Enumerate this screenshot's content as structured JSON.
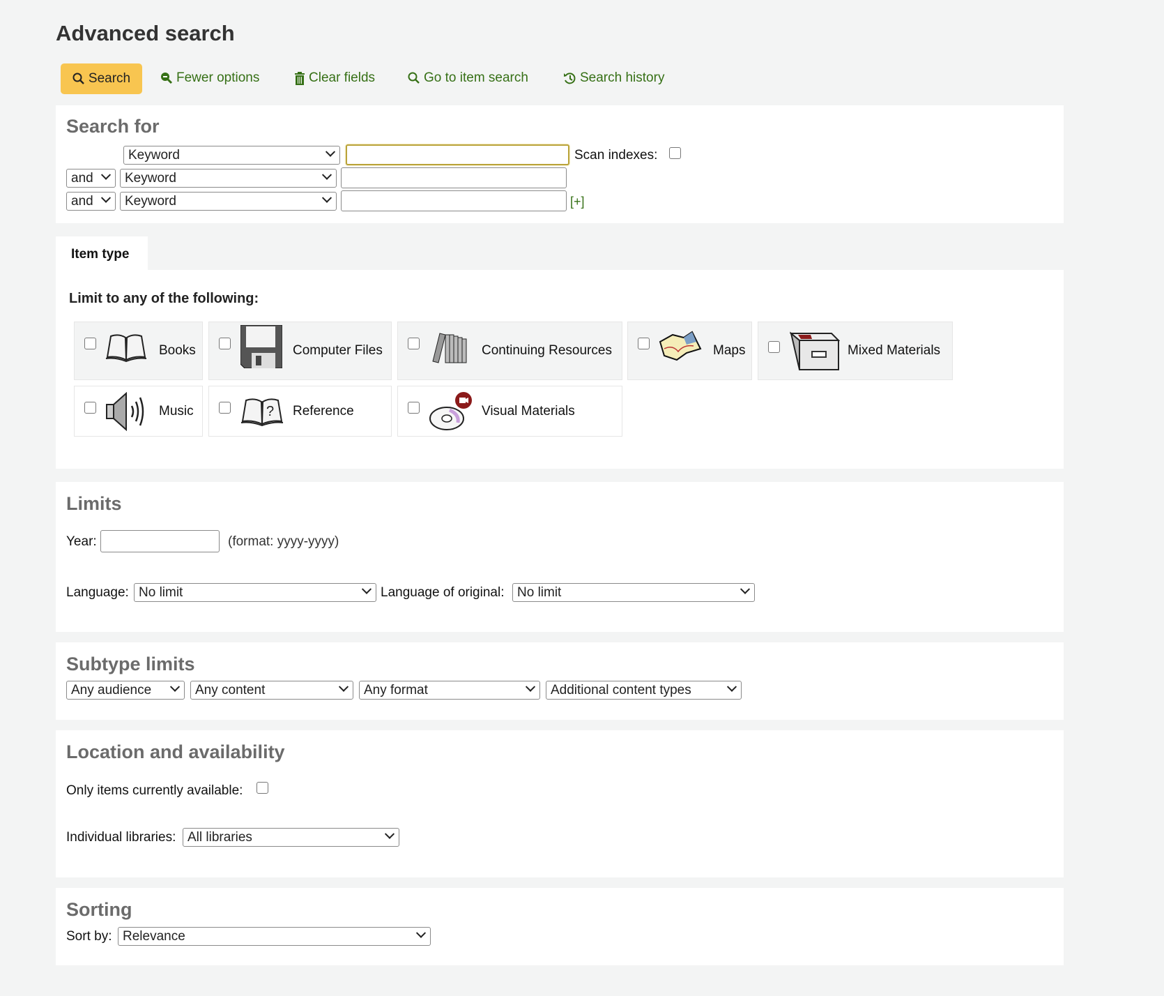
{
  "page_title": "Advanced search",
  "toolbar": {
    "search": "Search",
    "fewer_options": "Fewer options",
    "clear_fields": "Clear fields",
    "item_search": "Go to item search",
    "search_history": "Search history"
  },
  "search_for": {
    "heading": "Search for",
    "rows": [
      {
        "op": "",
        "index": "Keyword",
        "value": ""
      },
      {
        "op": "and",
        "index": "Keyword",
        "value": ""
      },
      {
        "op": "and",
        "index": "Keyword",
        "value": ""
      }
    ],
    "scan_indexes": "Scan indexes:",
    "scan_checked": false,
    "add": "[+]"
  },
  "item_type": {
    "tab": "Item type",
    "heading": "Limit to any of the following:",
    "items": [
      {
        "label": "Books",
        "icon": "book-icon"
      },
      {
        "label": "Computer Files",
        "icon": "floppy-disk-icon"
      },
      {
        "label": "Continuing Resources",
        "icon": "periodicals-icon"
      },
      {
        "label": "Maps",
        "icon": "map-icon"
      },
      {
        "label": "Mixed Materials",
        "icon": "file-box-icon"
      },
      {
        "label": "Music",
        "icon": "speaker-icon"
      },
      {
        "label": "Reference",
        "icon": "reference-book-icon"
      },
      {
        "label": "Visual Materials",
        "icon": "disc-icon"
      }
    ]
  },
  "limits": {
    "heading": "Limits",
    "year_label": "Year:",
    "year_value": "",
    "year_format": "(format: yyyy-yyyy)",
    "language_label": "Language:",
    "language_value": "No limit",
    "orig_label": "Language of original:",
    "orig_value": "No limit"
  },
  "subtype": {
    "heading": "Subtype limits",
    "audience": "Any audience",
    "content": "Any content",
    "format": "Any format",
    "additional": "Additional content types"
  },
  "location": {
    "heading": "Location and availability",
    "available_label": "Only items currently available:",
    "libraries_label": "Individual libraries:",
    "libraries_value": "All libraries"
  },
  "sorting": {
    "heading": "Sorting",
    "sort_label": "Sort by:",
    "sort_value": "Relevance"
  },
  "colors": {
    "accent": "#f8c550",
    "link": "#367016",
    "background": "#f3f4f4"
  }
}
